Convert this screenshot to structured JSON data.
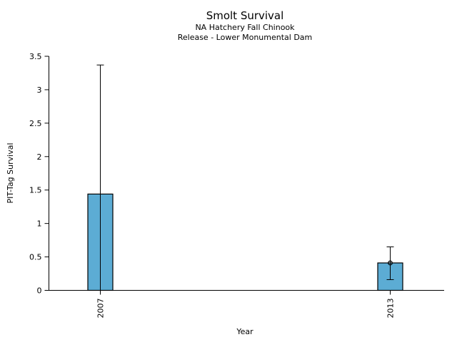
{
  "chart_data": {
    "type": "bar",
    "title": "Smolt Survival",
    "subtitle1": "NA Hatchery Fall Chinook",
    "subtitle2": "Release - Lower Monumental Dam",
    "xlabel": "Year",
    "ylabel": "PIT-Tag Survival",
    "categories": [
      "2007",
      "2013"
    ],
    "values": [
      1.44,
      0.41
    ],
    "error_high": [
      3.37,
      0.65
    ],
    "error_low": [
      0.0,
      0.16
    ],
    "markers": [
      {
        "category": "2013",
        "value": 0.41,
        "style": "open-circle"
      }
    ],
    "ylim": [
      0,
      3.5
    ],
    "yticks": [
      0,
      0.5,
      1,
      1.5,
      2,
      2.5,
      3,
      3.5
    ],
    "ytick_labels": [
      "0",
      "0.5",
      "1",
      "1.5",
      "2",
      "2.5",
      "3",
      "3.5"
    ],
    "grid": false,
    "legend": "none",
    "colors": {
      "bar_fill": "#5CACD4",
      "bar_border": "#000000",
      "error_bar": "#000000",
      "axis": "#000000",
      "background": "#ffffff"
    }
  }
}
